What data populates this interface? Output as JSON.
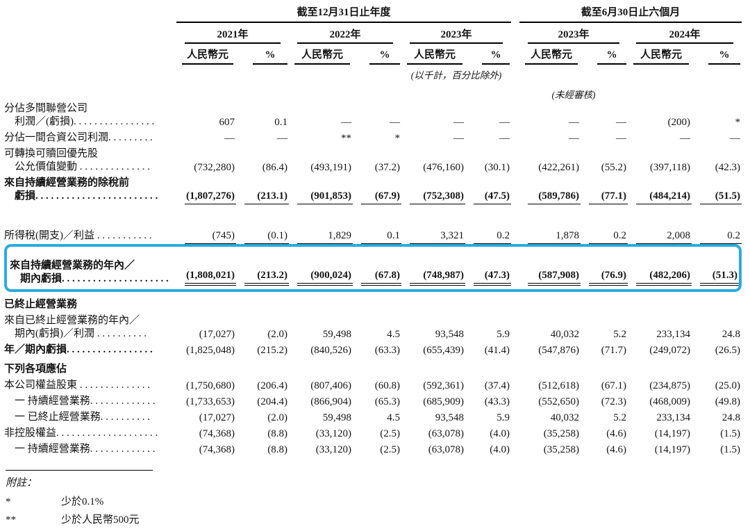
{
  "accent": {
    "highlight_border": "#29ABE2",
    "rule_color": "#000000"
  },
  "table": {
    "groups": [
      {
        "title": "截至12月31日止年度",
        "years": [
          "2021年",
          "2022年",
          "2023年"
        ]
      },
      {
        "title": "截至6月30日止六個月",
        "years": [
          "2023年",
          "2024年"
        ]
      }
    ],
    "col_headers": {
      "amount": "人民幣元",
      "pct": "%"
    },
    "notes_inline": {
      "thousands": "(以千計，百分比除外)",
      "unaudited": "(未經審核)"
    },
    "rows": [
      {
        "type": "item",
        "lines": [
          "分佔多間聯營公司",
          "　利潤／(虧損). . . . . . . . . . . . . . . ."
        ],
        "values": [
          "607",
          "0.1",
          "—",
          "—",
          "—",
          "—",
          "—",
          "—",
          "(200)",
          "*"
        ]
      },
      {
        "type": "item",
        "lines": [
          "分佔一間合資公司利潤. . . . . . . . ."
        ],
        "values": [
          "—",
          "—",
          "**",
          "*",
          "—",
          "—",
          "—",
          "—",
          "—",
          "—"
        ]
      },
      {
        "type": "item",
        "lines": [
          "可轉換可贖回優先股",
          "　公允價值變動 . . . . . . . . . . . . . ."
        ],
        "values": [
          "(732,280)",
          "(86.4)",
          "(493,191)",
          "(37.2)",
          "(476,160)",
          "(30.1)",
          "(422,261)",
          "(55.2)",
          "(397,118)",
          "(42.3)"
        ]
      },
      {
        "type": "subtotal",
        "rule": "single",
        "lines": [
          "來自持續經營業務的除稅前",
          "　虧損. . . . . . . . . . . . . . . . . . . . . . . ."
        ],
        "values": [
          "(1,807,276)",
          "(213.1)",
          "(901,853)",
          "(67.9)",
          "(752,308)",
          "(47.5)",
          "(589,786)",
          "(77.1)",
          "(484,214)",
          "(51.5)"
        ]
      },
      {
        "type": "item",
        "rule": "single",
        "space": true,
        "lines": [
          "所得稅(開支)／利益 . . . . . . . . . . ."
        ],
        "values": [
          "(745)",
          "(0.1)",
          "1,829",
          "0.1",
          "3,321",
          "0.2",
          "1,878",
          "0.2",
          "2,008",
          "0.2"
        ]
      },
      {
        "type": "highlight",
        "rule": "double",
        "space": true,
        "lines": [
          "來自持續經營業務的年內／",
          "　期內虧損. . . . . . . . . . . . . . . . . . . . ."
        ],
        "values": [
          "(1,808,021)",
          "(213.2)",
          "(900,024)",
          "(67.8)",
          "(748,987)",
          "(47.3)",
          "(587,908)",
          "(76.9)",
          "(482,206)",
          "(51.3)"
        ]
      },
      {
        "type": "section",
        "lines": [
          "已終止經營業務"
        ],
        "values": [
          "",
          "",
          "",
          "",
          "",
          "",
          "",
          "",
          "",
          ""
        ]
      },
      {
        "type": "item",
        "lines": [
          "來自已終止經營業務的年內／",
          "　期內(虧損)／利潤 . . . . . . . . . ."
        ],
        "values": [
          "(17,027)",
          "(2.0)",
          "59,498",
          "4.5",
          "93,548",
          "5.9",
          "40,032",
          "5.2",
          "233,134",
          "24.8"
        ]
      },
      {
        "type": "subtotal-plain",
        "lines": [
          "年／期內虧損. . . . . . . . . . . . . . . . ."
        ],
        "values": [
          "(1,825,048)",
          "(215.2)",
          "(840,526)",
          "(63.3)",
          "(655,439)",
          "(41.4)",
          "(547,876)",
          "(71.7)",
          "(249,072)",
          "(26.5)"
        ]
      },
      {
        "type": "section",
        "lines": [
          "下列各項應佔"
        ],
        "values": [
          "",
          "",
          "",
          "",
          "",
          "",
          "",
          "",
          "",
          ""
        ]
      },
      {
        "type": "item",
        "lines": [
          "本公司權益股東 . . . . . . . . . . . . . ."
        ],
        "values": [
          "(1,750,680)",
          "(206.4)",
          "(807,406)",
          "(60.8)",
          "(592,361)",
          "(37.4)",
          "(512,618)",
          "(67.1)",
          "(234,875)",
          "(25.0)"
        ]
      },
      {
        "type": "item",
        "lines": [
          "　一 持續經營業務. . . . . . . . . . . . ."
        ],
        "values": [
          "(1,733,653)",
          "(204.4)",
          "(866,904)",
          "(65.3)",
          "(685,909)",
          "(43.3)",
          "(552,650)",
          "(72.3)",
          "(468,009)",
          "(49.8)"
        ]
      },
      {
        "type": "item",
        "lines": [
          "　一 已終止經營業務. . . . . . . . . ."
        ],
        "values": [
          "(17,027)",
          "(2.0)",
          "59,498",
          "4.5",
          "93,548",
          "5.9",
          "40,032",
          "5.2",
          "233,134",
          "24.8"
        ]
      },
      {
        "type": "item",
        "lines": [
          "非控股權益. . . . . . . . . . . . . . . . . . . ."
        ],
        "values": [
          "(74,368)",
          "(8.8)",
          "(33,120)",
          "(2.5)",
          "(63,078)",
          "(4.0)",
          "(35,258)",
          "(4.6)",
          "(14,197)",
          "(1.5)"
        ]
      },
      {
        "type": "item",
        "lines": [
          "　一 持續經營業務. . . . . . . . . . . . ."
        ],
        "values": [
          "(74,368)",
          "(8.8)",
          "(33,120)",
          "(2.5)",
          "(63,078)",
          "(4.0)",
          "(35,258)",
          "(4.6)",
          "(14,197)",
          "(1.5)"
        ]
      }
    ]
  },
  "footnotes": {
    "title": "附註：",
    "items": [
      {
        "marker": "*",
        "text": "少於0.1%"
      },
      {
        "marker": "**",
        "text": "少於人民幣500元"
      }
    ]
  }
}
